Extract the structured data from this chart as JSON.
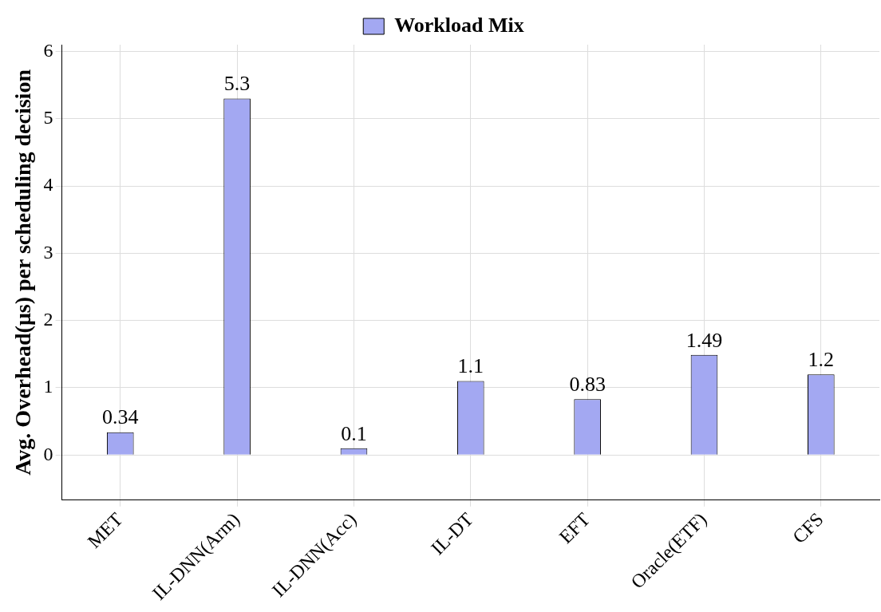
{
  "chart_data": {
    "type": "bar",
    "ylabel": "Avg. Overhead(μs) per scheduling decision",
    "categories": [
      "MET",
      "IL-DNN(Arm)",
      "IL-DNN(Acc)",
      "IL-DT",
      "EFT",
      "Oracle(ETF)",
      "CFS"
    ],
    "series": [
      {
        "name": "Workload Mix",
        "color": "#a3a8f2",
        "values": [
          0.34,
          5.3,
          0.1,
          1.1,
          0.83,
          1.49,
          1.2
        ]
      }
    ],
    "ylim": [
      -0.67,
      6.1
    ],
    "yticks": [
      0,
      1,
      2,
      3,
      4,
      5,
      6
    ],
    "grid": true,
    "legend": "top",
    "data_labels": true
  }
}
